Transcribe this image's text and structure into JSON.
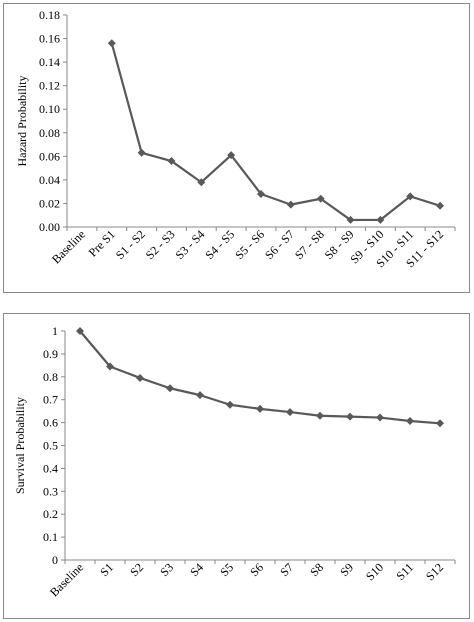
{
  "chart_data": [
    {
      "type": "line",
      "title": "",
      "xlabel": "",
      "ylabel": "Hazard Probability",
      "categories": [
        "Baseline",
        "Pre S1",
        "S1 - S2",
        "S2 - S3",
        "S3 - S4",
        "S4 - S5",
        "S5 - S6",
        "S6 - S7",
        "S7 - S8",
        "S8 - S9",
        "S9 - S10",
        "S10 - S11",
        "S11 - S12"
      ],
      "values": [
        null,
        0.156,
        0.063,
        0.056,
        0.038,
        0.061,
        0.028,
        0.019,
        0.024,
        0.006,
        0.006,
        0.026,
        0.018
      ],
      "ylim": [
        0,
        0.18
      ],
      "yticks": [
        "0.00",
        "0.02",
        "0.04",
        "0.06",
        "0.08",
        "0.10",
        "0.12",
        "0.14",
        "0.16",
        "0.18"
      ],
      "grid": false,
      "legend": "none",
      "marker": "diamond",
      "line_color": "#595959"
    },
    {
      "type": "line",
      "title": "",
      "xlabel": "",
      "ylabel": "Survival  Probability",
      "categories": [
        "Baseline",
        "S1",
        "S2",
        "S3",
        "S4",
        "S5",
        "S6",
        "S7",
        "S8",
        "S9",
        "S10",
        "S11",
        "S12"
      ],
      "values": [
        1.0,
        0.845,
        0.795,
        0.75,
        0.72,
        0.678,
        0.66,
        0.646,
        0.63,
        0.626,
        0.622,
        0.607,
        0.597
      ],
      "ylim": [
        0,
        1
      ],
      "yticks": [
        "0",
        "0.1",
        "0.2",
        "0.3",
        "0.4",
        "0.5",
        "0.6",
        "0.7",
        "0.8",
        "0.9",
        "1"
      ],
      "grid": false,
      "legend": "none",
      "marker": "diamond",
      "line_color": "#595959"
    }
  ]
}
